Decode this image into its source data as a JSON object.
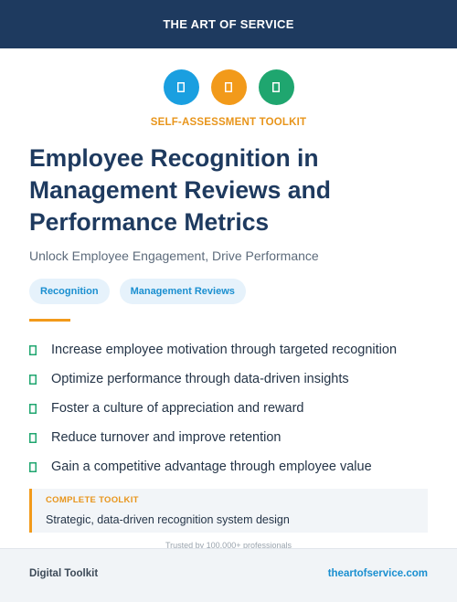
{
  "header": {
    "brand": "THE ART OF SERVICE"
  },
  "icons": [
    {
      "name": "tool-icon-1",
      "color": "#1a9fe0"
    },
    {
      "name": "tool-icon-2",
      "color": "#f29a1a"
    },
    {
      "name": "tool-icon-3",
      "color": "#1fa66f"
    }
  ],
  "kicker": "SELF-ASSESSMENT TOOLKIT",
  "title": {
    "line1": "Employee Recognition in",
    "line2": "Management Reviews and",
    "line3": "Performance Metrics"
  },
  "subtitle": "Unlock Employee Engagement, Drive Performance",
  "tags": [
    "Recognition",
    "Management Reviews"
  ],
  "benefits": [
    "Increase employee motivation through targeted recognition",
    "Optimize performance through data-driven insights",
    "Foster a culture of appreciation and reward",
    "Reduce turnover and improve retention",
    "Gain a competitive advantage through employee value"
  ],
  "callout": {
    "label": "COMPLETE TOOLKIT",
    "text": "Strategic, data-driven recognition system design"
  },
  "trusted": "Trusted by 100,000+ professionals",
  "footer": {
    "left": "Digital Toolkit",
    "right": "theartofservice.com"
  },
  "colors": {
    "navy": "#1e3a5f",
    "accent_orange": "#f29a1a",
    "link_blue": "#1a8fd0",
    "check_green": "#1fa66f"
  }
}
